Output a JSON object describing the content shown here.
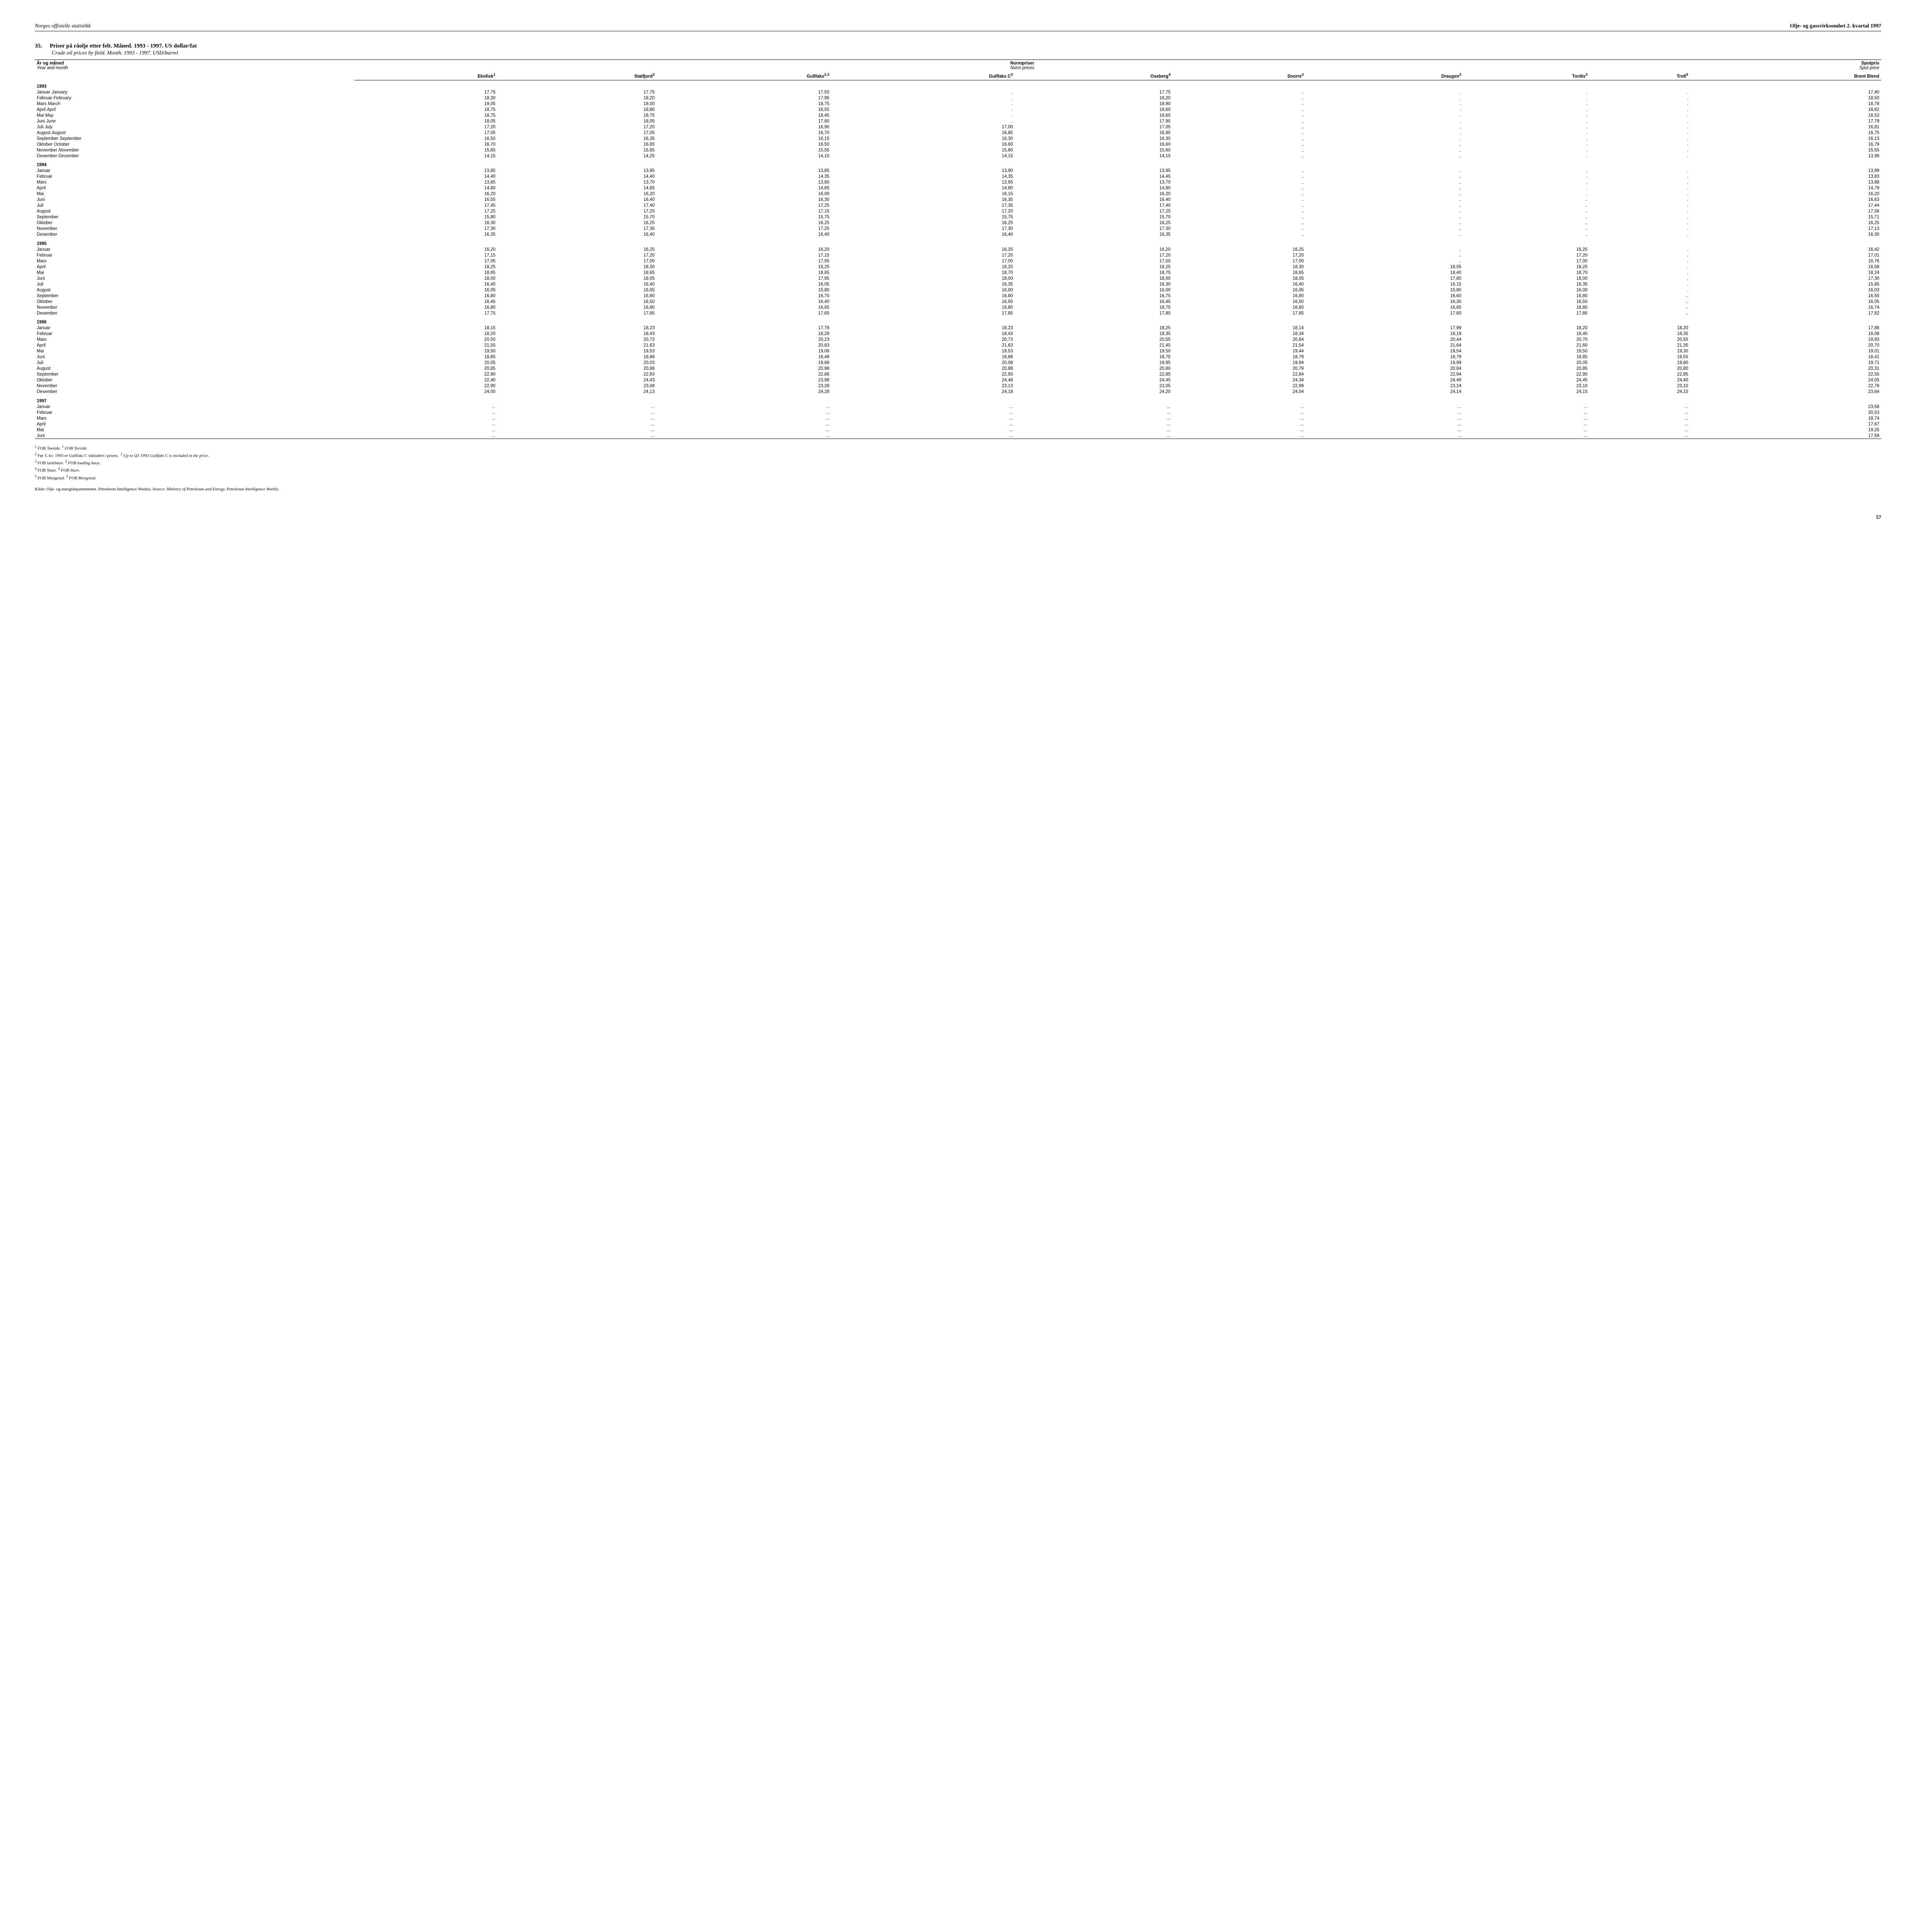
{
  "header": {
    "left": "Norges offisielle statistikk",
    "right": "Olje- og gassvirksomhet 2. kvartal 1997"
  },
  "title": {
    "number": "35.",
    "main": "Priser på råolje etter felt. Måned. 1993 - 1997. US dollar/fat",
    "sub": "Crude oil prices by field. Month. 1993 - 1997. USD/barrel"
  },
  "columns": {
    "year_month_no": "År og måned",
    "year_month_en": "Year and month",
    "norm_no": "Normpriser",
    "norm_en": "Norm prices",
    "spot_no": "Spotpris",
    "spot_en": "Spot price",
    "ekofisk": "Ekofisk",
    "statfjord": "Statfjord",
    "gullfaks": "Gullfaks",
    "gullfaks_c": "Gullfaks C",
    "oseberg": "Oseberg",
    "snorre": "Snorre",
    "draugen": "Draugen",
    "tordis": "Tordis",
    "troll": "Troll",
    "brent": "Brent Blend",
    "sup1": "1",
    "sup3": "3",
    "sup23": "2,3",
    "sup4": "4",
    "sup5": "5"
  },
  "sections": [
    {
      "year": "1993",
      "rows": [
        {
          "m": "Januar",
          "me": "January",
          "v": [
            "17,75",
            "17,75",
            "17,50",
            ".",
            "17,75",
            "..",
            ".",
            ".",
            ".",
            "17,40"
          ]
        },
        {
          "m": "Februar",
          "me": "February",
          "v": [
            "18,30",
            "18,20",
            "17,95",
            ".",
            "18,20",
            "..",
            ".",
            ".",
            ".",
            "18,50"
          ]
        },
        {
          "m": "Mars",
          "me": "March",
          "v": [
            "19,05",
            "19,00",
            "18,75",
            ".",
            "18,90",
            "..",
            ".",
            ".",
            ".",
            "18,78"
          ]
        },
        {
          "m": "April",
          "me": "April",
          "v": [
            "18,75",
            "18,80",
            "18,55",
            ".",
            "18,60",
            "..",
            ".",
            ".",
            ".",
            "18,62"
          ]
        },
        {
          "m": "Mai",
          "me": "May",
          "v": [
            "18,75",
            "18,75",
            "18,45",
            ".",
            "18,60",
            "..",
            ".",
            ".",
            ".",
            "18,53"
          ]
        },
        {
          "m": "Juni",
          "me": "June",
          "v": [
            "18,05",
            "18,05",
            "17,80",
            ".",
            "17,95",
            "..",
            ".",
            ".",
            ".",
            "17,79"
          ]
        },
        {
          "m": "Juli",
          "me": "July",
          "v": [
            "17,20",
            "17,20",
            "16,90",
            "17,00",
            "17,05",
            "..",
            ".",
            ".",
            ".",
            "16,81"
          ]
        },
        {
          "m": "August",
          "me": "August",
          "v": [
            "17,05",
            "17,05",
            "16,70",
            "16,85",
            "16,85",
            "..",
            ".",
            ".",
            ".",
            "16,75"
          ]
        },
        {
          "m": "September",
          "me": "September",
          "v": [
            "16,50",
            "16,35",
            "16,15",
            "16,30",
            "16,30",
            "..",
            ".",
            ".",
            ".",
            "16,13"
          ]
        },
        {
          "m": "Oktober",
          "me": "October",
          "v": [
            "16,70",
            "16,65",
            "16,50",
            "16,60",
            "16,60",
            "..",
            "..",
            ".",
            ".",
            "16,79"
          ]
        },
        {
          "m": "November",
          "me": "November",
          "v": [
            "15,65",
            "15,65",
            "15,55",
            "15,60",
            "15,60",
            "..",
            "..",
            ".",
            ".",
            "15,55"
          ]
        },
        {
          "m": "Desember",
          "me": "December",
          "v": [
            "14,15",
            "14,25",
            "14,10",
            "14,15",
            "14,15",
            "..",
            "..",
            ".",
            ".",
            "13,98"
          ]
        }
      ]
    },
    {
      "year": "1994",
      "rows": [
        {
          "m": "Januar",
          "me": "",
          "v": [
            "13,85",
            "13,95",
            "13,85",
            "13,90",
            "13,95",
            "..",
            "..",
            ".",
            ".",
            "13,99"
          ]
        },
        {
          "m": "Februar",
          "me": "",
          "v": [
            "14,40",
            "14,40",
            "14,35",
            "14,35",
            "14,45",
            "..",
            "..",
            ".",
            ".",
            "13,83"
          ]
        },
        {
          "m": "Mars",
          "me": "",
          "v": [
            "13,65",
            "13,70",
            "13,60",
            "13,65",
            "13,70",
            "..",
            "..",
            ".",
            ".",
            "13,88"
          ]
        },
        {
          "m": "April",
          "me": "",
          "v": [
            "14,80",
            "14,85",
            "14,65",
            "14,80",
            "14,80",
            "..",
            "..",
            ".",
            ".",
            "14,79"
          ]
        },
        {
          "m": "Mai",
          "me": "",
          "v": [
            "16,20",
            "16,20",
            "16,00",
            "16,15",
            "16,20",
            "..",
            "..",
            ".",
            ".",
            "16,20"
          ]
        },
        {
          "m": "Juni",
          "me": "",
          "v": [
            "16,55",
            "16,40",
            "16,30",
            "16,35",
            "16,40",
            "..",
            "..",
            "..",
            ".",
            "16,63"
          ]
        },
        {
          "m": "Juli",
          "me": "",
          "v": [
            "17,45",
            "17,40",
            "17,25",
            "17,35",
            "17,40",
            "..",
            "..",
            "..",
            ".",
            "17,44"
          ]
        },
        {
          "m": "August",
          "me": "",
          "v": [
            "17,25",
            "17,20",
            "17,15",
            "17,20",
            "17,25",
            "..",
            "..",
            "..",
            ".",
            "17,56"
          ]
        },
        {
          "m": "September",
          "me": "",
          "v": [
            "15,80",
            "15,70",
            "15,75",
            "15,75",
            "15,70",
            "..",
            "..",
            "..",
            ".",
            "15,71"
          ]
        },
        {
          "m": "Oktober",
          "me": "",
          "v": [
            "16,30",
            "16,25",
            "16,25",
            "16,25",
            "16,25",
            "..",
            "..",
            "..",
            ".",
            "16,25"
          ]
        },
        {
          "m": "November",
          "me": "",
          "v": [
            "17,30",
            "17,35",
            "17,25",
            "17,30",
            "17,30",
            "..",
            "..",
            "..",
            ".",
            "17,13"
          ]
        },
        {
          "m": "Desember",
          "me": "",
          "v": [
            "16,35",
            "16,40",
            "16,40",
            "16,40",
            "16,35",
            "..",
            "..",
            "..",
            ".",
            "16,30"
          ]
        }
      ]
    },
    {
      "year": "1995",
      "rows": [
        {
          "m": "Januar",
          "me": "",
          "v": [
            "16,20",
            "16,25",
            "16,20",
            "16,25",
            "16,20",
            "16,25",
            "..",
            "16,25",
            ".",
            "16,42"
          ]
        },
        {
          "m": "Februar",
          "me": "",
          "v": [
            "17,15",
            "17,20",
            "17,15",
            "17,20",
            "17,20",
            "17,20",
            "..",
            "17,20",
            ".",
            "17,01"
          ]
        },
        {
          "m": "Mars",
          "me": "",
          "v": [
            "17,05",
            "17,00",
            "17,05",
            "17,00",
            "17,00",
            "17,00",
            "..",
            "17,00",
            ".",
            "16,76"
          ]
        },
        {
          "m": "April",
          "me": "",
          "v": [
            "18,25",
            "18,30",
            "18,25",
            "18,25",
            "18,25",
            "18,30",
            "18,05",
            "18,25",
            ".",
            "16,58"
          ]
        },
        {
          "m": "Mai",
          "me": "",
          "v": [
            "18,65",
            "18,65",
            "18,65",
            "18,70",
            "18,75",
            "18,65",
            "18,40",
            "18,70",
            ".",
            "18,24"
          ]
        },
        {
          "m": "Juni",
          "me": "",
          "v": [
            "18,00",
            "18,05",
            "17,95",
            "18,00",
            "18,00",
            "18,05",
            "17,80",
            "18,00",
            ".",
            "17,30"
          ]
        },
        {
          "m": "Juli",
          "me": "",
          "v": [
            "16,40",
            "16,40",
            "16,05",
            "16,35",
            "16,30",
            "16,40",
            "16,15",
            "16,35",
            ".",
            "15,85"
          ]
        },
        {
          "m": "August",
          "me": "",
          "v": [
            "16,05",
            "16,05",
            "15,80",
            "16,00",
            "16,00",
            "16,05",
            "15,80",
            "16,00",
            ".",
            "16,03"
          ]
        },
        {
          "m": "September",
          "me": "",
          "v": [
            "16,80",
            "16,80",
            "16,70",
            "16,80",
            "16,75",
            "16,80",
            "16,60",
            "16,80",
            "..",
            "16,55"
          ]
        },
        {
          "m": "Oktober",
          "me": "",
          "v": [
            "16,45",
            "16,50",
            "16,40",
            "16,50",
            "16,45",
            "16,50",
            "16,30",
            "16,50",
            "..",
            "16,05"
          ]
        },
        {
          "m": "November",
          "me": "",
          "v": [
            "16,80",
            "16,80",
            "16,65",
            "16,80",
            "16,75",
            "16,80",
            "16,65",
            "16,80",
            "..",
            "16,74"
          ]
        },
        {
          "m": "Desember",
          "me": "",
          "v": [
            "17,75",
            "17,85",
            "17,65",
            "17,85",
            "17,80",
            "17,85",
            "17,60",
            "17,85",
            "..",
            "17,82"
          ]
        }
      ]
    },
    {
      "year": "1996",
      "rows": [
        {
          "m": "Januar",
          "me": "",
          "v": [
            "18,15",
            "18,23",
            "17,78",
            "18,23",
            "18,25",
            "18,14",
            "17,99",
            "18,20",
            "18,20",
            "17,86"
          ]
        },
        {
          "m": "Februar",
          "me": "",
          "v": [
            "18,20",
            "18,43",
            "18,28",
            "18,43",
            "18,35",
            "18,34",
            "18,19",
            "18,40",
            "18,35",
            "18,08"
          ]
        },
        {
          "m": "Mars",
          "me": "",
          "v": [
            "20,50",
            "20,73",
            "20,23",
            "20,73",
            "20,55",
            "20,64",
            "20,44",
            "20,70",
            "20,55",
            "19,93"
          ]
        },
        {
          "m": "April",
          "me": "",
          "v": [
            "21,55",
            "21,63",
            "20,63",
            "21,63",
            "21,45",
            "21,54",
            "21,64",
            "21,60",
            "21,35",
            "20,70"
          ]
        },
        {
          "m": "Mai",
          "me": "",
          "v": [
            "19,50",
            "19,53",
            "19,08",
            "19,53",
            "19,50",
            "19,44",
            "19,54",
            "19,50",
            "19,30",
            "19,01"
          ]
        },
        {
          "m": "Juni",
          "me": "",
          "v": [
            "18,85",
            "18,88",
            "18,48",
            "18,88",
            "18,75",
            "18,79",
            "18,79",
            "18,85",
            "18,55",
            "18,41"
          ]
        },
        {
          "m": "Juli",
          "me": "",
          "v": [
            "20,05",
            "20,03",
            "19,68",
            "20,08",
            "19,95",
            "19,94",
            "19,99",
            "20,05",
            "19,80",
            "19,71"
          ]
        },
        {
          "m": "August",
          "me": "",
          "v": [
            "20,85",
            "20,88",
            "20,98",
            "20,88",
            "20,80",
            "20,79",
            "20,84",
            "20,85",
            "20,80",
            "20,31"
          ]
        },
        {
          "m": "September",
          "me": "",
          "v": [
            "22,90",
            "22,93",
            "22,88",
            "22,93",
            "22,85",
            "22,84",
            "22,94",
            "22,90",
            "22,85",
            "22,55"
          ]
        },
        {
          "m": "Oktober",
          "me": "",
          "v": [
            "22,40",
            "24,43",
            "23,98",
            "24,48",
            "24,45",
            "24,34",
            "24,49",
            "24,45",
            "24,40",
            "24,05"
          ]
        },
        {
          "m": "November",
          "me": "",
          "v": [
            "22,90",
            "23,08",
            "23,28",
            "23,13",
            "23,05",
            "22,99",
            "23,24",
            "23,10",
            "23,10",
            "22,76"
          ]
        },
        {
          "m": "Desember",
          "me": "",
          "v": [
            "24,00",
            "24,13",
            "24,28",
            "24,18",
            "24,20",
            "24,04",
            "24,14",
            "24,15",
            "24,15",
            "23,64"
          ]
        }
      ]
    },
    {
      "year": "1997",
      "rows": [
        {
          "m": "Januar",
          "me": "",
          "v": [
            "...",
            "...",
            "...",
            "...",
            "...",
            "...",
            "...",
            "...",
            "...",
            "23,58"
          ]
        },
        {
          "m": "Februar",
          "me": "",
          "v": [
            "...",
            "...",
            "...",
            "...",
            "...",
            "...",
            "...",
            "...",
            "...",
            "20,53"
          ]
        },
        {
          "m": "Mars",
          "me": "",
          "v": [
            "...",
            "...",
            "...",
            "...",
            "...",
            "...",
            "...",
            "...",
            "...",
            "18,74"
          ]
        },
        {
          "m": "April",
          "me": "",
          "v": [
            "...",
            "...",
            "...",
            "...",
            "...",
            "...",
            "...",
            "...",
            "...",
            "17,67"
          ]
        },
        {
          "m": "Mai",
          "me": "",
          "v": [
            "...",
            "...",
            "...",
            "...",
            "...",
            "...",
            "...",
            "...",
            "...",
            "19,25"
          ]
        },
        {
          "m": "Juni",
          "me": "",
          "v": [
            "...",
            "...",
            "...",
            "...",
            "...",
            "...",
            "...",
            "...",
            "...",
            "17,59"
          ]
        }
      ]
    }
  ],
  "footnotes": {
    "f1_no": "FOB Teeside.",
    "f1_en": "FOB Teeside.",
    "f2_no": "Før 3. kv. 1993 er Gullfaks C inkludert i prisen.",
    "f2_en": "Up to Q3 1993 Gullfaks C is included in the price.",
    "f3_no": "FOB lastebøye.",
    "f3_en": "FOB loading buoy .",
    "f4_no": "FOB Sture.",
    "f4_en": "FOB Sture.",
    "f5_no": "FOB Mongstad.",
    "f5_en": "FOB Mongstad."
  },
  "source": {
    "no": "Kilde: Olje- og energidepartementet. Petroleum Intelligence Weekly.",
    "en": "Source: Ministry of Petroleum and Energy. Petroleum Intelligence Weekly."
  },
  "page_number": "57"
}
